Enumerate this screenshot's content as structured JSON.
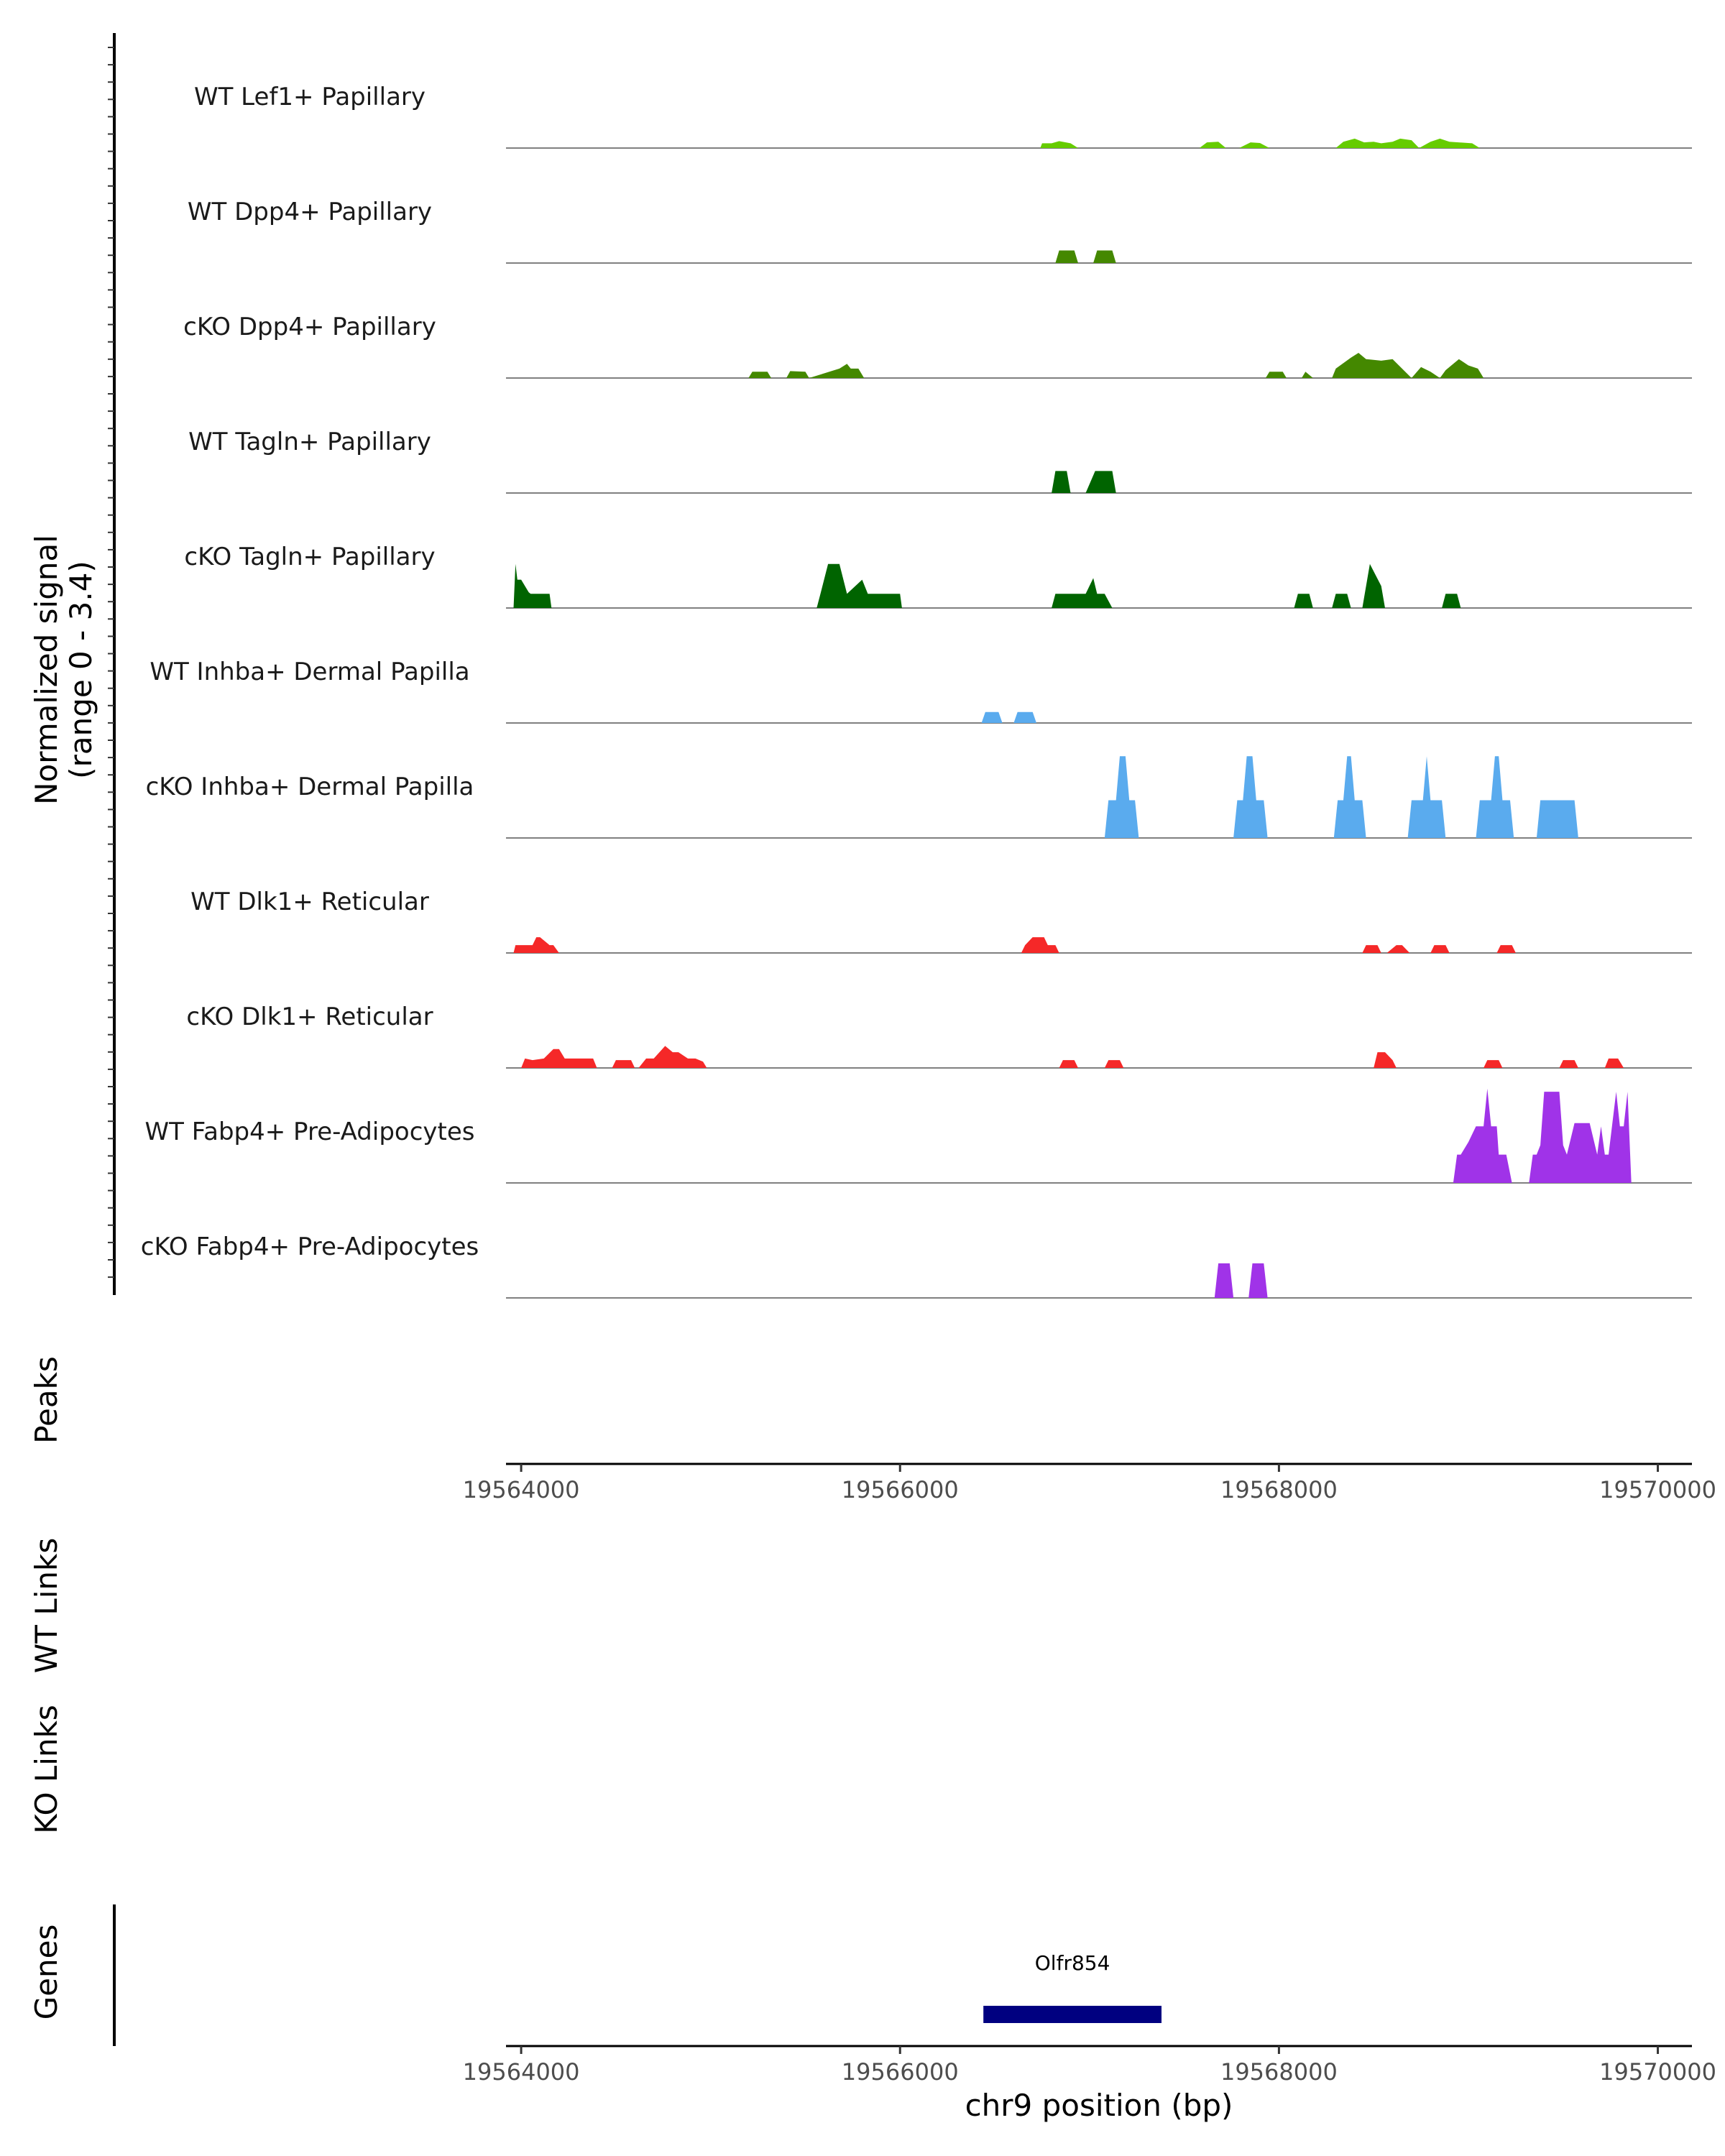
{
  "chart_data": {
    "type": "area",
    "chromosome": "chr9",
    "x_range": [
      19563920,
      19570180
    ],
    "x_ticks": [
      19564000,
      19566000,
      19568000,
      19570000
    ],
    "x_tick_labels": [
      "19564000",
      "19566000",
      "19568000",
      "19570000"
    ],
    "xlabel": "chr9 position (bp)",
    "ylabel_line1": "Normalized signal",
    "ylabel_line2": "(range 0 - 3.4)",
    "y_range": [
      0,
      3.4
    ],
    "panel_titles": {
      "peaks": "Peaks",
      "wt_links": "WT Links",
      "ko_links": "KO Links",
      "genes": "Genes"
    },
    "tracks": [
      {
        "label": "WT Lef1+ Papillary",
        "color": "#66cc00",
        "x": [
          19566740,
          19566750,
          19566800,
          19566840,
          19566900,
          19566940,
          19567580,
          19567620,
          19567680,
          19567720,
          19567790,
          19567850,
          19567900,
          19567950,
          19567990,
          19568300,
          19568340,
          19568400,
          19568450,
          19568500,
          19568540,
          19568600,
          19568640,
          19568700,
          19568740,
          19568800,
          19568850,
          19568900,
          19569020,
          19569060
        ],
        "y": [
          0,
          0.15,
          0.15,
          0.22,
          0.15,
          0,
          0,
          0.18,
          0.2,
          0,
          0,
          0.18,
          0.16,
          0,
          0,
          0,
          0.2,
          0.3,
          0.18,
          0.2,
          0.15,
          0.2,
          0.3,
          0.25,
          0,
          0.2,
          0.3,
          0.2,
          0.15,
          0
        ],
        "kind": "step"
      },
      {
        "label": "WT Dpp4+ Papillary",
        "color": "#448800",
        "x": [
          19566820,
          19566840,
          19566920,
          19566940,
          19567020,
          19567040,
          19567120,
          19567140
        ],
        "y": [
          0,
          0.4,
          0.4,
          0,
          0,
          0.4,
          0.4,
          0
        ],
        "kind": "step"
      },
      {
        "label": "cKO Dpp4+ Papillary",
        "color": "#448800",
        "x": [
          19565200,
          19565220,
          19565300,
          19565320,
          19565400,
          19565420,
          19565500,
          19565520,
          19565680,
          19565720,
          19565740,
          19565780,
          19565810,
          19567930,
          19567950,
          19568020,
          19568040,
          19568120,
          19568140,
          19568180,
          19568280,
          19568300,
          19568380,
          19568420,
          19568460,
          19568540,
          19568600,
          19568650,
          19568700,
          19568750,
          19568800,
          19568850,
          19568880,
          19568950,
          19569000,
          19569050,
          19569080
        ],
        "y": [
          0,
          0.2,
          0.2,
          0,
          0,
          0.22,
          0.2,
          0,
          0.3,
          0.45,
          0.3,
          0.3,
          0,
          0,
          0.2,
          0.2,
          0,
          0,
          0.2,
          0,
          0,
          0.3,
          0.65,
          0.8,
          0.6,
          0.55,
          0.6,
          0.3,
          0,
          0.35,
          0.2,
          0,
          0.25,
          0.6,
          0.4,
          0.3,
          0
        ],
        "kind": "step"
      },
      {
        "label": "WT Tagln+ Papillary",
        "color": "#006400",
        "x": [
          19566800,
          19566820,
          19566880,
          19566900,
          19566980,
          19567030,
          19567120,
          19567140
        ],
        "y": [
          0,
          0.7,
          0.7,
          0,
          0,
          0.7,
          0.7,
          0
        ],
        "kind": "step"
      },
      {
        "label": "cKO Tagln+ Papillary",
        "color": "#006400",
        "x": [
          19563960,
          19563970,
          19563980,
          19564000,
          19564040,
          19564050,
          19564100,
          19564150,
          19564160,
          19565560,
          19565580,
          19565620,
          19565680,
          19565720,
          19565800,
          19565830,
          19565870,
          19565900,
          19566000,
          19566010,
          19566800,
          19566820,
          19566980,
          19567020,
          19567040,
          19567080,
          19567120,
          19568080,
          19568100,
          19568160,
          19568180,
          19568280,
          19568300,
          19568360,
          19568380,
          19568440,
          19568480,
          19568540,
          19568560,
          19568860,
          19568880,
          19568940,
          19568960
        ],
        "y": [
          0,
          1.4,
          0.9,
          0.9,
          0.5,
          0.45,
          0.45,
          0.45,
          0,
          0,
          0.45,
          1.4,
          1.4,
          0.45,
          0.9,
          0.45,
          0.45,
          0.45,
          0.45,
          0,
          0,
          0.45,
          0.45,
          0.95,
          0.45,
          0.45,
          0,
          0,
          0.45,
          0.45,
          0,
          0,
          0.45,
          0.45,
          0,
          0,
          1.4,
          0.7,
          0,
          0,
          0.45,
          0.45,
          0
        ],
        "kind": "step"
      },
      {
        "label": "WT Inhba+ Dermal Papilla",
        "color": "#5aabee",
        "x": [
          19566430,
          19566450,
          19566520,
          19566540,
          19566600,
          19566620,
          19566700,
          19566720
        ],
        "y": [
          0,
          0.35,
          0.35,
          0,
          0,
          0.35,
          0.35,
          0
        ],
        "kind": "step"
      },
      {
        "label": "cKO Inhba+ Dermal Papilla",
        "color": "#5aabee",
        "x": [
          19567080,
          19567100,
          19567140,
          19567160,
          19567190,
          19567210,
          19567240,
          19567260,
          19567760,
          19567780,
          19567810,
          19567830,
          19567860,
          19567880,
          19567920,
          19567940,
          19568290,
          19568310,
          19568340,
          19568360,
          19568380,
          19568400,
          19568440,
          19568460,
          19568680,
          19568700,
          19568760,
          19568780,
          19568800,
          19568820,
          19568860,
          19568880,
          19569040,
          19569060,
          19569120,
          19569140,
          19569160,
          19569180,
          19569220,
          19569240,
          19569360,
          19569380,
          19569560,
          19569580
        ],
        "y": [
          0,
          1.2,
          1.2,
          2.6,
          2.6,
          1.2,
          1.2,
          0,
          0,
          1.2,
          1.2,
          2.6,
          2.6,
          1.2,
          1.2,
          0,
          0,
          1.2,
          1.2,
          2.6,
          2.6,
          1.2,
          1.2,
          0,
          0,
          1.2,
          1.2,
          2.6,
          1.2,
          1.2,
          1.2,
          0,
          0,
          1.2,
          1.2,
          2.6,
          2.6,
          1.2,
          1.2,
          0,
          0,
          1.2,
          1.2,
          0
        ],
        "kind": "step"
      },
      {
        "label": "WT Dlk1+ Reticular",
        "color": "#f52828",
        "x": [
          19563960,
          19563970,
          19564040,
          19564060,
          19564080,
          19564100,
          19564150,
          19564170,
          19564200,
          19566640,
          19566660,
          19566700,
          19566720,
          19566760,
          19566780,
          19566820,
          19566840,
          19568440,
          19568460,
          19568520,
          19568540,
          19568570,
          19568620,
          19568650,
          19568690,
          19568700,
          19568800,
          19568820,
          19568880,
          19568900,
          19569150,
          19569170,
          19569230,
          19569250
        ],
        "y": [
          0,
          0.25,
          0.25,
          0.25,
          0.5,
          0.5,
          0.25,
          0.25,
          0,
          0,
          0.25,
          0.5,
          0.5,
          0.5,
          0.25,
          0.25,
          0,
          0,
          0.25,
          0.25,
          0,
          0,
          0.25,
          0.25,
          0,
          0,
          0,
          0.25,
          0.25,
          0,
          0,
          0.25,
          0.25,
          0
        ],
        "kind": "step"
      },
      {
        "label": "cKO Dlk1+ Reticular",
        "color": "#f52828",
        "x": [
          19564000,
          19564020,
          19564060,
          19564120,
          19564170,
          19564200,
          19564230,
          19564260,
          19564330,
          19564380,
          19564400,
          19564480,
          19564500,
          19564580,
          19564600,
          19564620,
          19564660,
          19564700,
          19564760,
          19564800,
          19564830,
          19564880,
          19564920,
          19564960,
          19564980,
          19566840,
          19566860,
          19566920,
          19566940,
          19567080,
          19567100,
          19567160,
          19567180,
          19568500,
          19568520,
          19568560,
          19568600,
          19568620,
          19569080,
          19569100,
          19569160,
          19569180,
          19569480,
          19569500,
          19569560,
          19569580,
          19569720,
          19569740,
          19569790,
          19569820
        ],
        "y": [
          0,
          0.3,
          0.25,
          0.3,
          0.6,
          0.6,
          0.3,
          0.3,
          0.3,
          0.3,
          0,
          0,
          0.25,
          0.25,
          0,
          0,
          0.3,
          0.3,
          0.7,
          0.5,
          0.5,
          0.3,
          0.3,
          0.2,
          0,
          0,
          0.25,
          0.25,
          0,
          0,
          0.25,
          0.25,
          0,
          0,
          0.5,
          0.5,
          0.25,
          0,
          0,
          0.25,
          0.25,
          0,
          0,
          0.25,
          0.25,
          0,
          0,
          0.3,
          0.3,
          0
        ],
        "kind": "step"
      },
      {
        "label": "WT Fabp4+ Pre-Adipocytes",
        "color": "#a033e8",
        "x": [
          19568920,
          19568940,
          19568960,
          19569000,
          19569040,
          19569080,
          19569100,
          19569120,
          19569150,
          19569160,
          19569170,
          19569200,
          19569230,
          19569320,
          19569340,
          19569360,
          19569380,
          19569400,
          19569440,
          19569480,
          19569500,
          19569520,
          19569560,
          19569600,
          19569640,
          19569680,
          19569700,
          19569720,
          19569740,
          19569780,
          19569800,
          19569820,
          19569840,
          19569860
        ],
        "y": [
          0,
          0.9,
          0.9,
          1.3,
          1.8,
          1.8,
          3.0,
          1.8,
          1.8,
          0.9,
          0.9,
          0.9,
          0,
          0,
          0.9,
          0.9,
          1.2,
          2.9,
          2.9,
          2.9,
          1.2,
          0.9,
          1.9,
          1.9,
          1.9,
          0.9,
          1.8,
          0.9,
          0.9,
          2.9,
          1.8,
          1.8,
          2.9,
          0
        ],
        "kind": "step"
      },
      {
        "label": "cKO Fabp4+ Pre-Adipocytes",
        "color": "#a033e8",
        "x": [
          19567660,
          19567680,
          19567740,
          19567760,
          19567840,
          19567860,
          19567920,
          19567940
        ],
        "y": [
          0,
          1.1,
          1.1,
          0,
          0,
          1.1,
          1.1,
          0
        ],
        "kind": "step"
      }
    ],
    "genes": [
      {
        "name": "Olfr854",
        "start": 19566440,
        "end": 19567380,
        "color": "#000080"
      }
    ]
  }
}
